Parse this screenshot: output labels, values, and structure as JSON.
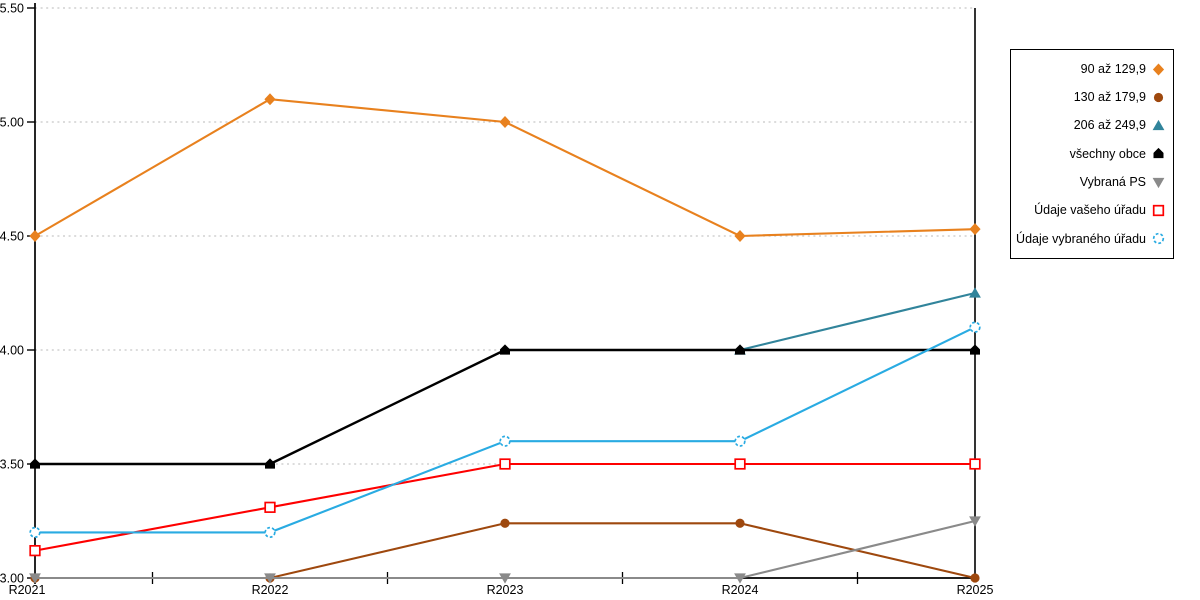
{
  "chart_data": {
    "type": "line",
    "title": "",
    "xlabel": "",
    "ylabel": "",
    "categories": [
      "R2021",
      "R2022",
      "R2023",
      "R2024",
      "R2025"
    ],
    "y_tick_labels": [
      "3.00",
      "3.50",
      "4.00",
      "4.50",
      "5.00",
      "5.50"
    ],
    "ylim": [
      3.0,
      5.5
    ],
    "grid": "horizontal-dotted",
    "gridline_color": "#c6c6c6",
    "axis_color": "#000000",
    "legend_position": "right",
    "series": [
      {
        "name": "90 až 129,9",
        "color": "#e8811e",
        "marker": "diamond",
        "fill": "filled",
        "values": [
          4.5,
          5.1,
          5.0,
          4.5,
          4.53
        ]
      },
      {
        "name": "130 až 179,9",
        "color": "#9e480e",
        "marker": "circle",
        "fill": "filled",
        "values": [
          3.0,
          3.0,
          3.24,
          3.24,
          3.0
        ]
      },
      {
        "name": "206 až 249,9",
        "color": "#31849b",
        "marker": "triangle-up",
        "fill": "filled",
        "values": [
          null,
          null,
          null,
          4.0,
          4.25
        ]
      },
      {
        "name": "všechny obce",
        "color": "#000000",
        "marker": "pentagon",
        "fill": "filled",
        "values": [
          3.5,
          3.5,
          4.0,
          4.0,
          4.0
        ]
      },
      {
        "name": "Vybraná PS",
        "color": "#8a8a8a",
        "marker": "triangle-down",
        "fill": "filled",
        "values": [
          3.0,
          3.0,
          3.0,
          3.0,
          3.25
        ]
      },
      {
        "name": "Údaje vašeho úřadu",
        "color": "#fe0000",
        "marker": "square",
        "fill": "open",
        "values": [
          3.12,
          3.31,
          3.5,
          3.5,
          3.5
        ]
      },
      {
        "name": "Údaje vybraného úřadu",
        "color": "#29abe2",
        "marker": "circle-dashed",
        "fill": "open",
        "values": [
          3.2,
          3.2,
          3.6,
          3.6,
          4.1
        ]
      }
    ]
  }
}
